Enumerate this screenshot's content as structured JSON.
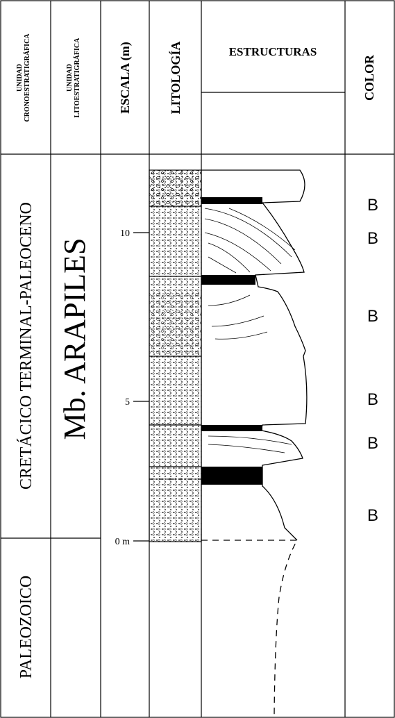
{
  "header": {
    "chrono": [
      "UNIDAD",
      "CRONOESTRATIGRÁFICA"
    ],
    "litho": [
      "UNIDAD",
      "LITOESTRATIGRÁFICA"
    ],
    "scale": "ESCALA (m)",
    "lithology": "LITOLOGÍA",
    "structures": "ESTRUCTURAS",
    "color": "COLOR"
  },
  "units": {
    "chrono_upper": "CRETÁCICO TERMINAL-PALEOCENO",
    "chrono_lower": "PALEOZOICO",
    "litho": "Mb. ARAPILES"
  },
  "scale_labels": [
    "10",
    "5",
    "0 m"
  ],
  "colors": [
    "B",
    "B",
    "B",
    "B",
    "B",
    "B"
  ]
}
